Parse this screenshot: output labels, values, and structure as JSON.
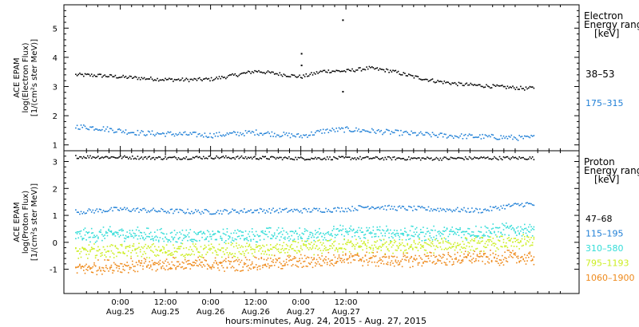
{
  "chart_data": [
    {
      "type": "scatter",
      "panel": "electron",
      "ylabel_lines": [
        "ACE EPAM",
        "log(Electron Flux)",
        "[1/(cm²s ster MeV)]"
      ],
      "ylim": [
        0.8,
        5.8
      ],
      "yticks": [
        "1",
        "2",
        "3",
        "4",
        "5"
      ],
      "legend_title": [
        "Electron",
        "Energy range",
        "[keV]"
      ],
      "series": [
        {
          "name": "38–53",
          "color": "#000000",
          "points": [
            [
              -12,
              3.42
            ],
            [
              -6,
              3.4
            ],
            [
              0,
              3.35
            ],
            [
              6,
              3.3
            ],
            [
              12,
              3.26
            ],
            [
              18,
              3.25
            ],
            [
              24,
              3.27
            ],
            [
              30,
              3.4
            ],
            [
              36,
              3.55
            ],
            [
              42,
              3.45
            ],
            [
              48,
              3.35
            ],
            [
              54,
              3.55
            ],
            [
              60,
              3.55
            ],
            [
              66,
              3.65
            ],
            [
              72,
              3.55
            ],
            [
              78,
              3.35
            ],
            [
              84,
              3.2
            ],
            [
              90,
              3.1
            ],
            [
              96,
              3.05
            ],
            [
              102,
              3.0
            ],
            [
              108,
              2.95
            ],
            [
              110,
              2.98
            ]
          ],
          "outliers": [
            [
              48,
              4.15
            ],
            [
              48,
              3.75
            ],
            [
              59,
              5.3
            ],
            [
              59,
              2.85
            ]
          ]
        },
        {
          "name": "175–315",
          "color": "#1f7fd6",
          "points": [
            [
              -12,
              1.65
            ],
            [
              -6,
              1.6
            ],
            [
              0,
              1.5
            ],
            [
              6,
              1.42
            ],
            [
              12,
              1.4
            ],
            [
              18,
              1.38
            ],
            [
              24,
              1.35
            ],
            [
              30,
              1.4
            ],
            [
              36,
              1.45
            ],
            [
              42,
              1.38
            ],
            [
              48,
              1.32
            ],
            [
              54,
              1.5
            ],
            [
              60,
              1.55
            ],
            [
              66,
              1.5
            ],
            [
              72,
              1.45
            ],
            [
              78,
              1.4
            ],
            [
              84,
              1.35
            ],
            [
              90,
              1.32
            ],
            [
              96,
              1.3
            ],
            [
              102,
              1.28
            ],
            [
              108,
              1.25
            ],
            [
              110,
              1.3
            ]
          ]
        }
      ]
    },
    {
      "type": "scatter",
      "panel": "proton",
      "ylabel_lines": [
        "ACE EPAM",
        "log(Proton Flux)",
        "[1/(cm²s ster MeV)]"
      ],
      "ylim": [
        -1.9,
        3.4
      ],
      "yticks": [
        "-1",
        "0",
        "1",
        "2",
        "3"
      ],
      "legend_title": [
        "Proton",
        "Energy range",
        "[keV]"
      ],
      "series": [
        {
          "name": "47–68",
          "color": "#000000",
          "points": [
            [
              -12,
              3.2
            ],
            [
              0,
              3.18
            ],
            [
              12,
              3.15
            ],
            [
              24,
              3.18
            ],
            [
              36,
              3.16
            ],
            [
              48,
              3.14
            ],
            [
              60,
              3.15
            ],
            [
              72,
              3.14
            ],
            [
              84,
              3.13
            ],
            [
              96,
              3.15
            ],
            [
              110,
              3.15
            ]
          ]
        },
        {
          "name": "115–195",
          "color": "#1f7fd6",
          "points": [
            [
              -12,
              1.15
            ],
            [
              -6,
              1.2
            ],
            [
              0,
              1.25
            ],
            [
              12,
              1.18
            ],
            [
              24,
              1.15
            ],
            [
              36,
              1.2
            ],
            [
              48,
              1.2
            ],
            [
              60,
              1.25
            ],
            [
              66,
              1.35
            ],
            [
              72,
              1.3
            ],
            [
              84,
              1.25
            ],
            [
              96,
              1.2
            ],
            [
              102,
              1.35
            ],
            [
              108,
              1.45
            ],
            [
              110,
              1.4
            ]
          ]
        },
        {
          "name": "310–580",
          "color": "#33ddd8",
          "points": [
            [
              -12,
              0.25
            ],
            [
              0,
              0.35
            ],
            [
              12,
              0.25
            ],
            [
              24,
              0.25
            ],
            [
              36,
              0.3
            ],
            [
              48,
              0.3
            ],
            [
              60,
              0.4
            ],
            [
              72,
              0.35
            ],
            [
              84,
              0.35
            ],
            [
              96,
              0.4
            ],
            [
              110,
              0.55
            ]
          ]
        },
        {
          "name": "795–1193",
          "color": "#ccee22",
          "points": [
            [
              -12,
              -0.35
            ],
            [
              0,
              -0.25
            ],
            [
              12,
              -0.3
            ],
            [
              24,
              -0.3
            ],
            [
              36,
              -0.25
            ],
            [
              48,
              -0.2
            ],
            [
              60,
              -0.1
            ],
            [
              72,
              -0.15
            ],
            [
              84,
              -0.1
            ],
            [
              96,
              -0.05
            ],
            [
              110,
              0.05
            ]
          ]
        },
        {
          "name": "1060–1900",
          "color": "#ee8a1c",
          "points": [
            [
              -12,
              -0.95
            ],
            [
              0,
              -0.85
            ],
            [
              12,
              -0.8
            ],
            [
              24,
              -0.8
            ],
            [
              36,
              -0.75
            ],
            [
              48,
              -0.7
            ],
            [
              60,
              -0.55
            ],
            [
              72,
              -0.65
            ],
            [
              84,
              -0.6
            ],
            [
              96,
              -0.55
            ],
            [
              110,
              -0.55
            ]
          ]
        }
      ]
    }
  ],
  "x_axis": {
    "range_hours": [
      -15,
      122
    ],
    "ticks": [
      {
        "hour": 0,
        "time": "0:00",
        "date": "Aug.25"
      },
      {
        "hour": 12,
        "time": "12:00",
        "date": "Aug.25"
      },
      {
        "hour": 24,
        "time": "0:00",
        "date": "Aug.26"
      },
      {
        "hour": 36,
        "time": "12:00",
        "date": "Aug.26"
      },
      {
        "hour": 48,
        "time": "0:00",
        "date": "Aug.27"
      },
      {
        "hour": 60,
        "time": "12:00",
        "date": "Aug.27"
      }
    ],
    "label": "hours:minutes, Aug. 24, 2015 - Aug. 27, 2015"
  }
}
